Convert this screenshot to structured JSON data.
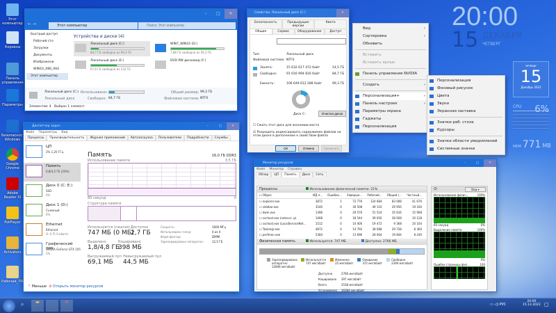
{
  "desktop": {
    "icons": [
      "Этот компьютер",
      "Корзина",
      "Панель управления",
      "Параметры",
      "Безопасность Windows",
      "Google Chrome",
      "Adobe Reader XI",
      "PotPlayer",
      "Activators",
      "Рабочий_ЛЯХ"
    ]
  },
  "clock": {
    "time": "20:00",
    "day": "15",
    "month": "ДЕКАБРЯ",
    "weekday": "ЧЕТВЕРГ"
  },
  "calendar": {
    "weekday": "четверг",
    "day": "15",
    "month_year": "Декабрь 2022"
  },
  "cpu_gadget": {
    "label": "CPU",
    "value": "6%"
  },
  "mem_gadget": {
    "label": "MEM",
    "value": "771",
    "unit": "MB"
  },
  "explorer": {
    "address": "Этот компьютер",
    "search_placeholder": "Поиск: Этот компьютер",
    "nav": [
      "Быстрый доступ",
      "Рабочий сто",
      "Загрузки",
      "Документы",
      "Изображени",
      "WIN10_X86_X64",
      "Этот компьютер"
    ],
    "group": "Устройства и диски (4)",
    "drives": [
      {
        "name": "Локальный диск (C:)",
        "free": "84,7 ГБ свободно из 99,3 ГБ",
        "used_pct": 15
      },
      {
        "name": "WIN7_WIN10 (D:)",
        "free": "7,88 ГБ свободно из 56,3 ГБ",
        "used_pct": 86
      },
      {
        "name": "Локальный диск (E:)",
        "free": "67,6 ГБ свободно из 132 ГБ",
        "used_pct": 49
      },
      {
        "name": "DVD RW дисковод (F:)",
        "free": "",
        "used_pct": null
      }
    ],
    "details": {
      "name": "Локальный диск (C:)",
      "type": "Локальный диск",
      "used_label": "Использовано:",
      "free_label": "Свободно:",
      "free": "84,7 ГБ",
      "total_label": "Общий размер:",
      "total": "99,3 ГБ",
      "fs_label": "Файловая система:",
      "fs": "NTFS"
    },
    "status": {
      "items": "Элементов: 4",
      "selected": "Выбран 1 элемент"
    }
  },
  "properties": {
    "title": "Свойства: Локальный диск (C:)",
    "tabs_row1": [
      "Безопасность",
      "Предыдущие версии",
      "Квота"
    ],
    "tabs_row2": [
      "Общие",
      "Сервис",
      "Оборудование",
      "Доступ"
    ],
    "type_label": "Тип:",
    "type": "Локальный диск",
    "fs_label": "Файловая система:",
    "fs": "NTFS",
    "used_label": "Занято:",
    "used_bytes": "15 632 617 472 байт",
    "used_gb": "14,5 ГБ",
    "free_label": "Свободно:",
    "free_bytes": "91 016 994 816 байт",
    "free_gb": "84,7 ГБ",
    "cap_label": "Емкость:",
    "cap_bytes": "106 649 612 288 байт",
    "cap_gb": "99,3 ГБ",
    "disk_label": "Диск C:",
    "cleanup": "Очистка диска",
    "compress": "Сжать этот диск для экономии места",
    "index": "Разрешить индексировать содержимое файлов на этом диске в дополнение к свойствам файла",
    "ok": "ОК",
    "cancel": "Отмена",
    "apply": "Применить",
    "used_fraction": 0.147,
    "colors": {
      "used": "#26a0da",
      "free": "#b3b3b3"
    }
  },
  "context_menu": {
    "items": [
      "Вид",
      "Сортировка",
      "Обновить",
      "Вставить",
      "Вставить ярлык",
      "Панель управления NVIDIA",
      "Создать",
      "Персонализация+",
      "Панель настроек",
      "Параметры экрана",
      "Гаджеты",
      "Персонализация"
    ],
    "submenu": [
      "Персонализация",
      "Фоновый рисунок",
      "Цвета",
      "Звуки",
      "Экранная заставка",
      "Значки раб. стола",
      "Курсоры",
      "Значки области уведомлений",
      "Системные значки"
    ]
  },
  "taskmgr": {
    "title": "Диспетчер задач",
    "menu": [
      "Файл",
      "Параметры",
      "Вид"
    ],
    "tabs": [
      "Процессы",
      "Производительность",
      "Журнал приложений",
      "Автозагрузка",
      "Пользователи",
      "Подробности",
      "Службы"
    ],
    "side": [
      {
        "name": "ЦП",
        "sub": "2% 1,20 ГГц",
        "sub2": ""
      },
      {
        "name": "Память",
        "sub": "0,8/3,5 ГБ (23%)",
        "sub2": ""
      },
      {
        "name": "Диск 0 (C: E:)",
        "sub": "SSD",
        "sub2": "0%"
      },
      {
        "name": "Диск 1 (D:)",
        "sub": "Съемный",
        "sub2": "0%"
      },
      {
        "name": "Ethernet",
        "sub": "Ethernet",
        "sub2": "О: 0 П: 0 кбит/с"
      },
      {
        "name": "Графический про",
        "sub": "NVIDIA GeForce GTX 105",
        "sub2": "1%"
      }
    ],
    "heading": "Память",
    "spec": "16,0 ГБ DDR3",
    "usage_label": "Использование памяти",
    "usage_max": "3,5 ГБ",
    "time_label": "60 секунд",
    "zero": "0",
    "structure_label": "Структура памяти",
    "stats": [
      {
        "l": "Используется (сжатая)",
        "v": "747 МБ (0 МБ)"
      },
      {
        "l": "Доступно",
        "v": "2,7 ГБ"
      },
      {
        "l": "Выделено",
        "v": "1,8/4,8 ГБ"
      },
      {
        "l": "Кэшировано",
        "v": "398 МБ"
      },
      {
        "l": "Выгружаемый пул",
        "v": "69,1 МБ"
      },
      {
        "l": "Невыгружаемый пул",
        "v": "44,5 МБ"
      }
    ],
    "right_stats": [
      [
        "Скорость:",
        "1600 МГц"
      ],
      [
        "Использовано гнезд:",
        "4 из 4"
      ],
      [
        "Форм-фактор:",
        "DIMM"
      ],
      [
        "Зарезервировано аппаратно:",
        "12,5 ГБ"
      ]
    ],
    "less": "Меньше",
    "open_monitor": "Открыть монитор ресурсов"
  },
  "resmon": {
    "title": "Монитор ресурсов",
    "menu": [
      "Файл",
      "Монитор",
      "Справка"
    ],
    "tabs": [
      "Обзор",
      "ЦП",
      "Память",
      "Диск",
      "Сеть"
    ],
    "processes_label": "Процессы",
    "phys_usage": "Использование физической памяти: 21%",
    "columns": [
      "Образ",
      "ИД п...",
      "Ошибок...",
      "Заверше...",
      "Рабочий...",
      "Общий (...",
      "Частный..."
    ],
    "rows": [
      [
        "explorer.exe",
        "3872",
        "1",
        "72 776",
        "124 684",
        "83 008",
        "41 676"
      ],
      [
        "sidebar.exe",
        "3540",
        "0",
        "30 508",
        "49 116",
        "29 956",
        "19 160"
      ],
      [
        "dwm.exe",
        "1396",
        "0",
        "29 576",
        "51 524",
        "35 616",
        "15 908"
      ],
      [
        "svchost.exe (netsvcs -p)",
        "1468",
        "0",
        "18 544",
        "39 056",
        "28 928",
        "10 128"
      ],
      [
        "svchost.exe (LocalServiceNet...",
        "1512",
        "0",
        "14 400",
        "19 472",
        "9 368",
        "10 104"
      ],
      [
        "Taskmgr.exe",
        "4872",
        "0",
        "14 792",
        "38 088",
        "29 728",
        "8 360"
      ],
      [
        "perfmon.exe",
        "5384",
        "0",
        "13 696",
        "28 064",
        "19 844",
        "8 240"
      ]
    ],
    "phys_label": "Физическая память",
    "in_use": "Используется: 747 МБ",
    "available": "Доступно: 2766 МБ",
    "legend": [
      {
        "n": "Зарезервировано аппаратно",
        "v": "12846 мегабайт",
        "c": "#a0a0a0"
      },
      {
        "n": "Используется",
        "v": "747 мегабайт",
        "c": "#8db020"
      },
      {
        "n": "Изменено",
        "v": "25 мегабайт",
        "c": "#e08a1e"
      },
      {
        "n": "Ожидание",
        "v": "372 мегабайт",
        "c": "#3a78c0"
      },
      {
        "n": "Свободно",
        "v": "2394 мегабайт",
        "c": "#b8d4f0"
      }
    ],
    "summary": [
      [
        "Доступно",
        "2766 мегабайт"
      ],
      [
        "Кэшировано",
        "397 мегабайт"
      ],
      [
        "Всего",
        "3538 мегабайт"
      ],
      [
        "Установлено",
        "16384 мегабайт"
      ]
    ],
    "view": "Вид",
    "graphs": [
      {
        "t": "Использование физич...",
        "max": "100%",
        "min": "0%",
        "time": "60 секунд"
      },
      {
        "t": "Выделение памяти",
        "max": "100%",
        "min": "0%"
      },
      {
        "t": "Ошибок страницы физ...",
        "max": "100"
      }
    ]
  },
  "tray": {
    "lang": "РУС",
    "time": "20:00",
    "date": "15.12.2022"
  }
}
